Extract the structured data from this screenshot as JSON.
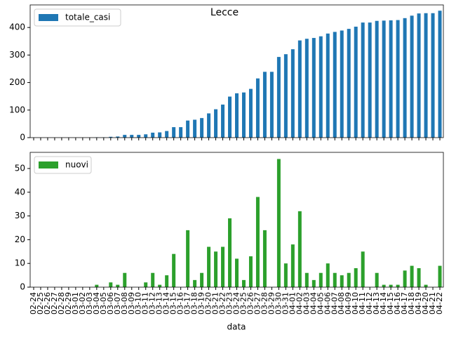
{
  "chart_data": [
    {
      "type": "bar",
      "title": "Lecce",
      "series": [
        {
          "name": "totale_casi",
          "color": "#1f77b4",
          "values": [
            0,
            0,
            0,
            0,
            0,
            0,
            0,
            0,
            0,
            1,
            1,
            3,
            4,
            10,
            10,
            10,
            12,
            18,
            19,
            24,
            38,
            38,
            62,
            65,
            71,
            88,
            103,
            120,
            149,
            161,
            164,
            177,
            215,
            239,
            239,
            293,
            303,
            321,
            353,
            359,
            362,
            368,
            378,
            384,
            389,
            395,
            403,
            418,
            418,
            424,
            425,
            426,
            427,
            434,
            443,
            451,
            452,
            452,
            461
          ]
        }
      ],
      "ylim": [
        0,
        482
      ],
      "yticks": [
        0,
        100,
        200,
        300,
        400
      ],
      "legend": "upper left"
    },
    {
      "type": "bar",
      "xlabel": "data",
      "categories": [
        "02-24",
        "02-25",
        "02-26",
        "02-27",
        "02-28",
        "02-29",
        "03-01",
        "03-02",
        "03-03",
        "03-04",
        "03-05",
        "03-06",
        "03-07",
        "03-08",
        "03-09",
        "03-10",
        "03-11",
        "03-12",
        "03-13",
        "03-14",
        "03-15",
        "03-16",
        "03-17",
        "03-18",
        "03-19",
        "03-20",
        "03-21",
        "03-22",
        "03-23",
        "03-24",
        "03-25",
        "03-26",
        "03-27",
        "03-28",
        "03-29",
        "03-30",
        "03-31",
        "04-01",
        "04-02",
        "04-03",
        "04-04",
        "04-05",
        "04-06",
        "04-07",
        "04-08",
        "04-09",
        "04-10",
        "04-11",
        "04-12",
        "04-13",
        "04-14",
        "04-15",
        "04-16",
        "04-17",
        "04-18",
        "04-19",
        "04-20",
        "04-21",
        "04-22"
      ],
      "series": [
        {
          "name": "nuovi",
          "color": "#2ca02c",
          "values": [
            0,
            0,
            0,
            0,
            0,
            0,
            0,
            0,
            0,
            1,
            0,
            2,
            1,
            6,
            0,
            0,
            2,
            6,
            1,
            5,
            14,
            0,
            24,
            3,
            6,
            17,
            15,
            17,
            29,
            12,
            3,
            13,
            38,
            24,
            0,
            54,
            10,
            18,
            32,
            6,
            3,
            6,
            10,
            6,
            5,
            6,
            8,
            15,
            0,
            6,
            1,
            1,
            1,
            7,
            9,
            8,
            1,
            0,
            9
          ]
        }
      ],
      "ylim": [
        0,
        56.8
      ],
      "yticks": [
        0,
        10,
        20,
        30,
        40,
        50
      ],
      "legend": "upper left"
    }
  ]
}
